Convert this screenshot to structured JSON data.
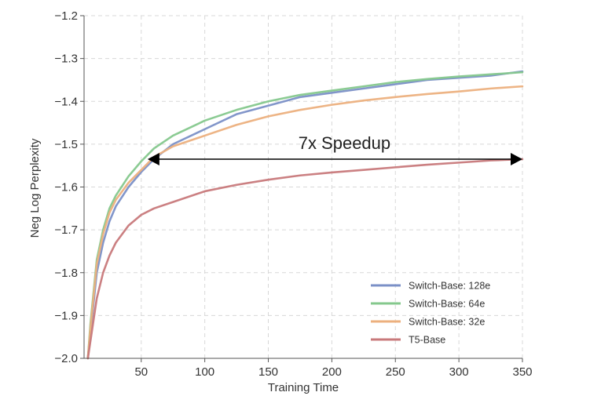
{
  "chart_data": {
    "type": "line",
    "title": "",
    "xlabel": "Training Time",
    "ylabel": "Neg Log Perplexity",
    "xlim": [
      5,
      350
    ],
    "ylim": [
      -2.0,
      -1.2
    ],
    "xticks": [
      50,
      100,
      150,
      200,
      250,
      300,
      350
    ],
    "yticks": [
      -2.0,
      -1.9,
      -1.8,
      -1.7,
      -1.6,
      -1.5,
      -1.4,
      -1.3,
      -1.2
    ],
    "xtick_labels": [
      "50",
      "100",
      "150",
      "200",
      "250",
      "300",
      "350"
    ],
    "ytick_labels": [
      "−2.0",
      "−1.9",
      "−1.8",
      "−1.7",
      "−1.6",
      "−1.5",
      "−1.4",
      "−1.3",
      "−1.2"
    ],
    "grid": true,
    "legend_position": "bottom-right",
    "series": [
      {
        "name": "Switch-Base: 128e",
        "color": "#7b90c7",
        "x": [
          8,
          10,
          15,
          20,
          25,
          30,
          40,
          50,
          60,
          75,
          100,
          125,
          150,
          175,
          200,
          225,
          250,
          275,
          300,
          325,
          350
        ],
        "y": [
          -2.0,
          -1.94,
          -1.8,
          -1.73,
          -1.68,
          -1.645,
          -1.6,
          -1.565,
          -1.535,
          -1.5,
          -1.465,
          -1.43,
          -1.41,
          -1.39,
          -1.38,
          -1.37,
          -1.36,
          -1.35,
          -1.345,
          -1.34,
          -1.33
        ]
      },
      {
        "name": "Switch-Base: 64e",
        "color": "#85c88d",
        "x": [
          8,
          10,
          15,
          20,
          25,
          30,
          40,
          50,
          60,
          75,
          100,
          125,
          150,
          175,
          200,
          225,
          250,
          275,
          300,
          325,
          350
        ],
        "y": [
          -2.0,
          -1.92,
          -1.77,
          -1.7,
          -1.65,
          -1.62,
          -1.575,
          -1.54,
          -1.51,
          -1.48,
          -1.445,
          -1.42,
          -1.4,
          -1.385,
          -1.375,
          -1.365,
          -1.355,
          -1.348,
          -1.342,
          -1.337,
          -1.332
        ]
      },
      {
        "name": "Switch-Base: 32e",
        "color": "#ecb07e",
        "x": [
          8,
          10,
          15,
          20,
          25,
          30,
          40,
          50,
          60,
          75,
          100,
          125,
          150,
          175,
          200,
          225,
          250,
          275,
          300,
          325,
          350
        ],
        "y": [
          -2.0,
          -1.93,
          -1.78,
          -1.71,
          -1.66,
          -1.63,
          -1.59,
          -1.56,
          -1.53,
          -1.505,
          -1.48,
          -1.455,
          -1.435,
          -1.42,
          -1.408,
          -1.398,
          -1.39,
          -1.383,
          -1.377,
          -1.37,
          -1.365
        ]
      },
      {
        "name": "T5-Base",
        "color": "#c8797b",
        "x": [
          8,
          10,
          15,
          20,
          25,
          30,
          40,
          50,
          60,
          75,
          100,
          125,
          150,
          175,
          200,
          225,
          250,
          275,
          300,
          325,
          350
        ],
        "y": [
          -2.0,
          -1.96,
          -1.86,
          -1.8,
          -1.76,
          -1.73,
          -1.69,
          -1.665,
          -1.65,
          -1.635,
          -1.61,
          -1.595,
          -1.583,
          -1.573,
          -1.566,
          -1.56,
          -1.554,
          -1.548,
          -1.543,
          -1.538,
          -1.535
        ]
      }
    ],
    "annotations": [
      {
        "text": "7x Speedup",
        "type": "double-arrow",
        "x_start": 55,
        "x_end": 350,
        "y": -1.535
      }
    ]
  }
}
